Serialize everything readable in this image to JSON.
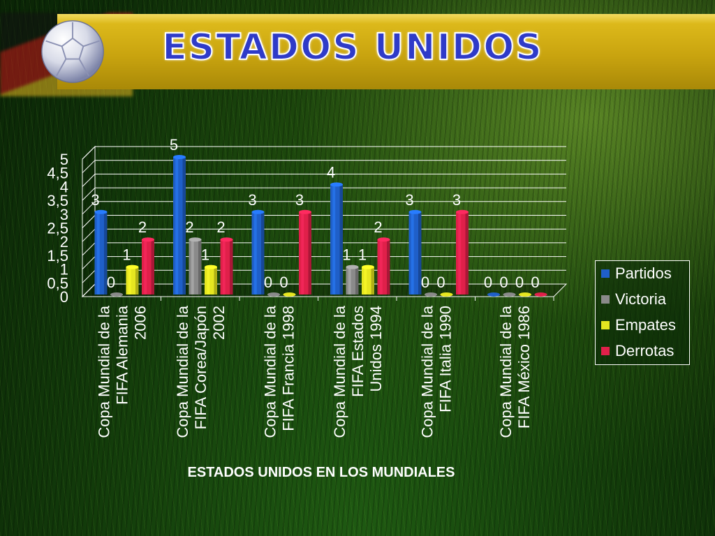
{
  "slide": {
    "title": "ESTADOS UNIDOS",
    "colors": {
      "banner": "#d4b015",
      "title": "#2f3bc8"
    }
  },
  "chart_data": {
    "type": "bar",
    "style": "3d-clustered-column",
    "title": "",
    "xlabel": "ESTADOS UNIDOS EN LOS MUNDIALES",
    "ylabel": "",
    "ylim": [
      0,
      5
    ],
    "y_ticks": [
      "0",
      "0,5",
      "1",
      "1,5",
      "2",
      "2,5",
      "3",
      "3,5",
      "4",
      "4,5",
      "5"
    ],
    "grid": true,
    "legend_position": "right",
    "categories": [
      "Copa Mundial de la FIFA Alemania 2006",
      "Copa Mundial de la FIFA Corea/Japón 2002",
      "Copa Mundial de la FIFA Francia 1998",
      "Copa Mundial de la FIFA Estados Unidos 1994",
      "Copa Mundial de la FIFA Italia 1990",
      "Copa Mundial de la FIFA México 1986"
    ],
    "category_lines": [
      [
        "Copa Mundial de la",
        "FIFA Alemania",
        "2006"
      ],
      [
        "Copa Mundial de la",
        "FIFA Corea/Japón",
        "2002"
      ],
      [
        "Copa Mundial de la",
        "FIFA Francia 1998"
      ],
      [
        "Copa Mundial de la",
        "FIFA Estados",
        "Unidos 1994"
      ],
      [
        "Copa Mundial de la",
        "FIFA Italia 1990"
      ],
      [
        "Copa Mundial de la",
        "FIFA México 1986"
      ]
    ],
    "series": [
      {
        "name": "Partidos",
        "color": "#1f5fc8",
        "values": [
          3,
          5,
          3,
          4,
          3,
          0
        ]
      },
      {
        "name": "Victoria",
        "color": "#8a8a8a",
        "values": [
          0,
          2,
          0,
          1,
          0,
          0
        ]
      },
      {
        "name": "Empates",
        "color": "#e6e620",
        "values": [
          1,
          1,
          0,
          1,
          0,
          0
        ]
      },
      {
        "name": "Derrotas",
        "color": "#e0204a",
        "values": [
          2,
          2,
          3,
          2,
          3,
          0
        ]
      }
    ]
  }
}
